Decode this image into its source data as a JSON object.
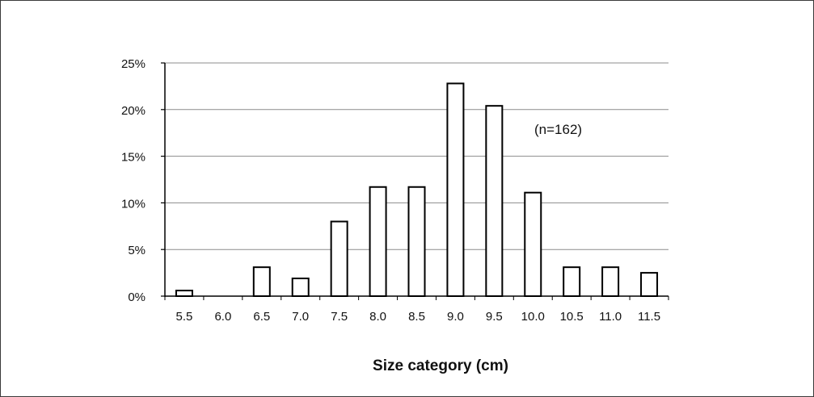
{
  "chart_data": {
    "type": "bar",
    "title": "",
    "xlabel": "Size category (cm)",
    "ylabel": "",
    "categories": [
      "5.5",
      "6.0",
      "6.5",
      "7.0",
      "7.5",
      "8.0",
      "8.5",
      "9.0",
      "9.5",
      "10.0",
      "10.5",
      "11.0",
      "11.5"
    ],
    "values": [
      0.6,
      0,
      3.1,
      1.9,
      8.0,
      11.7,
      11.7,
      22.8,
      20.4,
      11.1,
      3.1,
      3.1,
      2.5
    ],
    "ylim": [
      0,
      25
    ],
    "yticks": [
      0,
      5,
      10,
      15,
      20,
      25
    ],
    "ytick_labels": [
      "0%",
      "5%",
      "10%",
      "15%",
      "20%",
      "25%"
    ],
    "annotation": "(n=162)",
    "grid": "horizontal",
    "legend": "none",
    "bar_fill": "#ffffff",
    "bar_stroke": "#000000",
    "grid_color": "#8c8c8c"
  }
}
